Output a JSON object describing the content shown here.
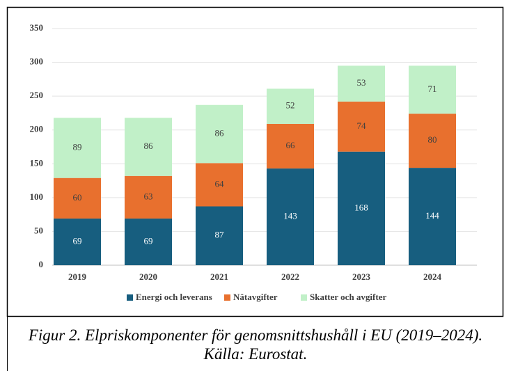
{
  "chart_data": {
    "type": "stacked_bar",
    "categories": [
      "2019",
      "2020",
      "2021",
      "2022",
      "2023",
      "2024"
    ],
    "series": [
      {
        "name": "Energi och leverans",
        "color": "#175e7f",
        "values": [
          69,
          69,
          87,
          143,
          168,
          144
        ]
      },
      {
        "name": "Nätavgifter",
        "color": "#e8702e",
        "values": [
          60,
          63,
          64,
          66,
          74,
          80
        ]
      },
      {
        "name": "Skatter och avgifter",
        "color": "#c1f0c8",
        "values": [
          89,
          86,
          86,
          52,
          53,
          71
        ]
      }
    ],
    "ylim": [
      0,
      350
    ],
    "yticks": [
      0,
      50,
      100,
      150,
      200,
      250,
      300,
      350
    ],
    "grid": true,
    "legend": "bottom",
    "caption": "Figur 2. Elpriskomponenter för genomsnittshushåll i EU (2019–2024). Källa: Eurostat."
  }
}
